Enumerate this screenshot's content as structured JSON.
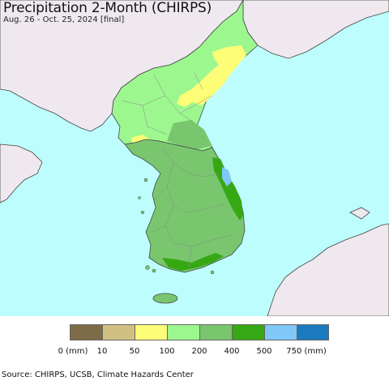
{
  "header": {
    "title": "Precipitation 2-Month (CHIRPS)",
    "subtitle": "Aug. 26 - Oct. 25, 2024 [final]"
  },
  "legend": {
    "colors": [
      "#7e6b47",
      "#d2c083",
      "#fdfd78",
      "#9df78f",
      "#79c66f",
      "#36a814",
      "#80c8f7",
      "#1c7bc0"
    ],
    "tick_labels": [
      "0 (mm)",
      "10",
      "50",
      "100",
      "200",
      "400",
      "500",
      "750 (mm)"
    ]
  },
  "map": {
    "ocean_color": "#bdfdfd",
    "land_outside_color": "#efe9ef"
  },
  "footer": {
    "source": "Source: CHIRPS, UCSB, Climate Hazards Center"
  }
}
